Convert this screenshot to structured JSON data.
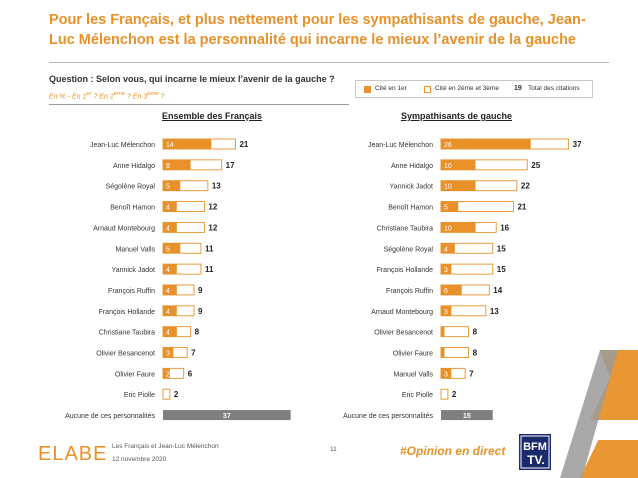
{
  "header": {
    "title": "Pour les Français, et plus nettement pour les sympathisants de gauche, Jean-Luc Mélenchon est la personnalité qui incarne le mieux l’avenir de la gauche",
    "question": "Question : Selon vous, qui incarne le mieux l’avenir de la gauche ?",
    "subtitle_prefix": "En % - En 1",
    "subtitle_sup1": "er",
    "subtitle_mid1": " ? En 2",
    "subtitle_sup2": "ème",
    "subtitle_mid2": " ? En 3",
    "subtitle_sup3": "ème",
    "subtitle_end": " ?"
  },
  "legend": {
    "first": "Cité en 1er",
    "second": "Cité en 2ème et 3ème",
    "total_value": "19",
    "total_label": "Total des citations"
  },
  "colors": {
    "accent": "#e8912a",
    "outline": "#e8912a",
    "none_bar": "#7f7f7f",
    "text": "#333333"
  },
  "chart_data": [
    {
      "type": "bar",
      "title": "Ensemble des Français",
      "stacked": true,
      "categories": [
        "Jean-Luc Mélenchon",
        "Anne Hidalgo",
        "Ségolène Royal",
        "Benoît Hamon",
        "Arnaud Montebourg",
        "Manuel Valls",
        "Yannick Jadot",
        "François Ruffin",
        "François Hollande",
        "Christiane Taubira",
        "Olivier Besancenot",
        "Olivier Faure",
        "Eric Piolle",
        "Aucune de ces personnalités"
      ],
      "series": [
        {
          "name": "Cité en 1er",
          "values": [
            14,
            8,
            5,
            4,
            4,
            5,
            4,
            4,
            4,
            4,
            3,
            2,
            null,
            37
          ]
        },
        {
          "name": "Total des citations",
          "values": [
            21,
            17,
            13,
            12,
            12,
            11,
            11,
            9,
            9,
            8,
            7,
            6,
            2,
            null
          ]
        }
      ]
    },
    {
      "type": "bar",
      "title": "Sympathisants de gauche",
      "stacked": true,
      "categories": [
        "Jean-Luc Mélenchon",
        "Anne Hidalgo",
        "Yannick Jadot",
        "Benoît Hamon",
        "Christiane Taubira",
        "Ségolène Royal",
        "François Hollande",
        "François Ruffin",
        "Arnaud Montebourg",
        "Olivier Besancenot",
        "Olivier Faure",
        "Manuel Valls",
        "Eric Piolle",
        "Aucune de ces personnalités"
      ],
      "series": [
        {
          "name": "Cité en 1er",
          "values": [
            26,
            10,
            10,
            5,
            10,
            4,
            3,
            6,
            3,
            1,
            1,
            3,
            null,
            15
          ]
        },
        {
          "name": "Total des citations",
          "values": [
            37,
            25,
            22,
            21,
            16,
            15,
            15,
            14,
            13,
            8,
            8,
            7,
            2,
            null
          ]
        }
      ]
    }
  ],
  "footer": {
    "logo": "ELABE",
    "source": "Les Français et Jean-Luc Mélenchon",
    "date": "12 novembre 2020",
    "page": "11",
    "hashtag": "#Opinion en direct",
    "bfm_top": "BFM",
    "bfm_bottom": "TV."
  }
}
